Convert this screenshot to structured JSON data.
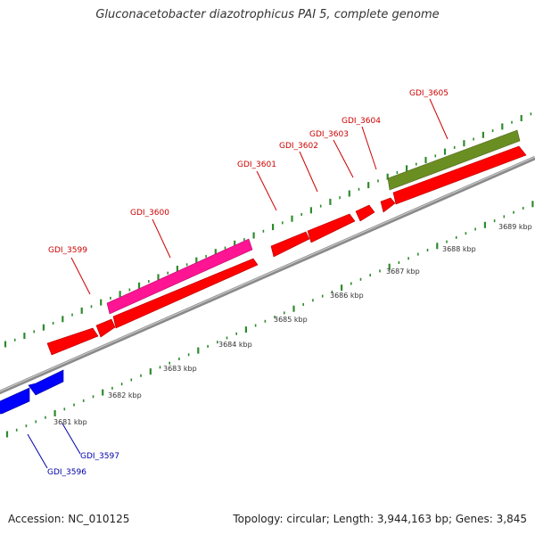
{
  "title": "Gluconacetobacter diazotrophicus PAI 5, complete genome",
  "footer": {
    "accession": "Accession: NC_010125",
    "stats": "Topology: circular; Length: 3,944,163 bp; Genes: 3,845"
  },
  "colors": {
    "backbone": "#8a8a8a",
    "tick": "#2e8b2e",
    "cds_forward": "#ff0000",
    "cds_reverse": "#0000ff",
    "trna": "#ff1493",
    "rrna": "#6b8e23",
    "label_forward": "#cc0000",
    "label_reverse": "#0000aa"
  },
  "scale": {
    "unit": "kbp",
    "labels": [
      "3681 kbp",
      "3682 kbp",
      "3683 kbp",
      "3684 kbp",
      "3685 kbp",
      "3686 kbp",
      "3687 kbp",
      "3688 kbp",
      "3689 kbp"
    ]
  },
  "genes": [
    {
      "name": "GDI_3596",
      "strand": "-",
      "type": "CDS"
    },
    {
      "name": "GDI_3597",
      "strand": "-",
      "type": "CDS"
    },
    {
      "name": "GDI_3599",
      "strand": "+",
      "type": "CDS"
    },
    {
      "name": "GDI_3600",
      "strand": "+",
      "type": "CDS"
    },
    {
      "name": "GDI_3601",
      "strand": "+",
      "type": "CDS"
    },
    {
      "name": "GDI_3602",
      "strand": "+",
      "type": "CDS"
    },
    {
      "name": "GDI_3603",
      "strand": "+",
      "type": "CDS"
    },
    {
      "name": "GDI_3604",
      "strand": "+",
      "type": "CDS"
    },
    {
      "name": "GDI_3605",
      "strand": "+",
      "type": "CDS"
    }
  ]
}
